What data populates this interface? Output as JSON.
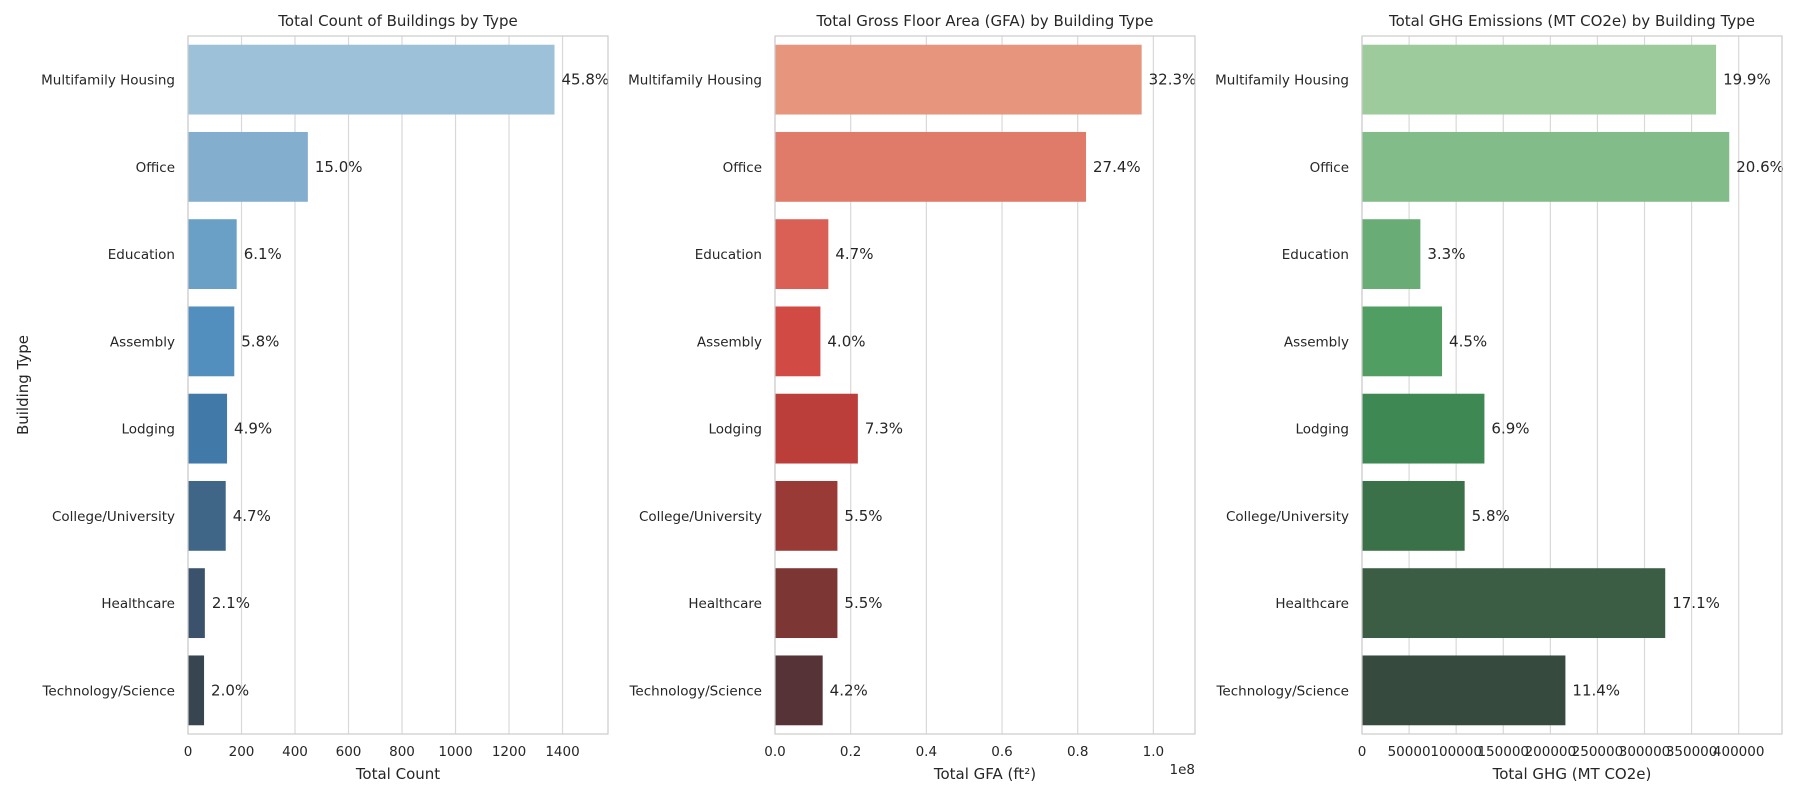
{
  "chart_data": [
    {
      "type": "bar",
      "orientation": "horizontal",
      "title": "Total Count of Buildings by Type",
      "xlabel": "Total Count",
      "ylabel": "Building Type",
      "categories": [
        "Multifamily Housing",
        "Office",
        "Education",
        "Assembly",
        "Lodging",
        "College/University",
        "Healthcare",
        "Technology/Science"
      ],
      "values": [
        1370,
        448,
        182,
        173,
        146,
        141,
        63,
        60
      ],
      "data_labels": [
        "45.8%",
        "15.0%",
        "6.1%",
        "5.8%",
        "4.9%",
        "4.7%",
        "2.1%",
        "2.0%"
      ],
      "xlim": [
        0,
        1570
      ],
      "xticks": [
        0,
        200,
        400,
        600,
        800,
        1000,
        1200,
        1400
      ],
      "xtick_labels": [
        "0",
        "200",
        "400",
        "600",
        "800",
        "1000",
        "1200",
        "1400"
      ],
      "offset_text": "",
      "grid": "vertical",
      "colors": [
        "#9dc1d9",
        "#84aece",
        "#6a9fc6",
        "#528fbf",
        "#4179a8",
        "#3f6687",
        "#3b526c",
        "#36454f"
      ]
    },
    {
      "type": "bar",
      "orientation": "horizontal",
      "title": "Total Gross Floor Area (GFA) by Building Type",
      "xlabel": "Total GFA (ft²)",
      "ylabel": "",
      "categories": [
        "Multifamily Housing",
        "Office",
        "Education",
        "Assembly",
        "Lodging",
        "College/University",
        "Healthcare",
        "Technology/Science"
      ],
      "values": [
        96900000,
        82200000,
        14100000,
        12000000,
        21900000,
        16500000,
        16500000,
        12600000
      ],
      "data_labels": [
        "32.3%",
        "27.4%",
        "4.7%",
        "4.0%",
        "7.3%",
        "5.5%",
        "5.5%",
        "4.2%"
      ],
      "xlim": [
        0,
        111000000
      ],
      "xticks": [
        0,
        20000000,
        40000000,
        60000000,
        80000000,
        100000000
      ],
      "xtick_labels": [
        "0.0",
        "0.2",
        "0.4",
        "0.6",
        "0.8",
        "1.0"
      ],
      "offset_text": "1e8",
      "grid": "vertical",
      "colors": [
        "#e8957e",
        "#e07a69",
        "#da5f55",
        "#d14a43",
        "#bc3e3a",
        "#9a3a36",
        "#7c3634",
        "#553336"
      ]
    },
    {
      "type": "bar",
      "orientation": "horizontal",
      "title": "Total GHG Emissions (MT CO2e) by Building Type",
      "xlabel": "Total GHG (MT CO2e)",
      "ylabel": "",
      "categories": [
        "Multifamily Housing",
        "Office",
        "Education",
        "Assembly",
        "Lodging",
        "College/University",
        "Healthcare",
        "Technology/Science"
      ],
      "values": [
        376000,
        390000,
        62000,
        85000,
        130000,
        109000,
        322000,
        216000
      ],
      "data_labels": [
        "19.9%",
        "20.6%",
        "3.3%",
        "4.5%",
        "6.9%",
        "5.8%",
        "17.1%",
        "11.4%"
      ],
      "xlim": [
        0,
        446000
      ],
      "xticks": [
        0,
        50000,
        100000,
        150000,
        200000,
        250000,
        300000,
        350000,
        400000
      ],
      "xtick_labels": [
        "0",
        "50000",
        "100000",
        "150000",
        "200000",
        "250000",
        "300000",
        "350000",
        "400000"
      ],
      "offset_text": "",
      "grid": "vertical",
      "colors": [
        "#9dcb9b",
        "#81bc89",
        "#6aac75",
        "#519e63",
        "#3e8953",
        "#3b7148",
        "#3a5d43",
        "#364b3e"
      ]
    }
  ]
}
